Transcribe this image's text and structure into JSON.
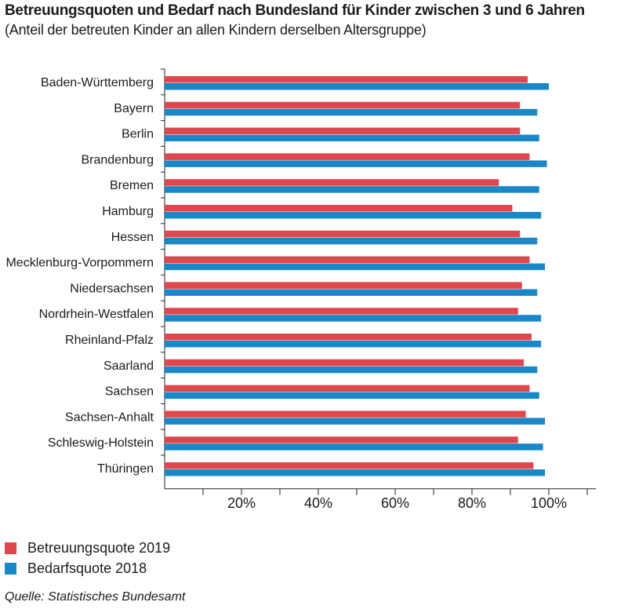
{
  "chart_data": {
    "type": "bar",
    "orientation": "horizontal",
    "title": "Betreuungsquoten und Bedarf nach Bundesland für Kinder zwischen 3 und 6 Jahren",
    "subtitle": "(Anteil der betreuten Kinder an allen Kindern derselben Altersgruppe)",
    "categories": [
      "Baden-Württemberg",
      "Bayern",
      "Berlin",
      "Brandenburg",
      "Bremen",
      "Hamburg",
      "Hessen",
      "Mecklenburg-Vorpommern",
      "Niedersachsen",
      "Nordrhein-Westfalen",
      "Rheinland-Pfalz",
      "Saarland",
      "Sachsen",
      "Sachsen-Anhalt",
      "Schleswig-Holstein",
      "Thüringen"
    ],
    "series": [
      {
        "name": "Betreuungsquote 2019",
        "color": "#e0474c",
        "values": [
          94.5,
          92.5,
          92.5,
          95,
          87,
          90.5,
          92.5,
          95,
          93,
          92,
          95.5,
          93.5,
          95,
          94,
          92,
          96
        ]
      },
      {
        "name": "Bedarfsquote 2018",
        "color": "#1a87c9",
        "values": [
          100,
          97,
          97.5,
          99.5,
          97.5,
          98,
          97,
          99,
          97,
          98,
          98,
          97,
          97.5,
          99,
          98.5,
          99
        ]
      }
    ],
    "xlim": [
      0,
      100
    ],
    "xticks": [
      "20%",
      "40%",
      "60%",
      "80%",
      "100%"
    ],
    "xtick_values": [
      20,
      40,
      60,
      80,
      100
    ],
    "grid": false,
    "legend_position": "bottom-left",
    "source": "Quelle: Statistisches Bundesamt"
  }
}
